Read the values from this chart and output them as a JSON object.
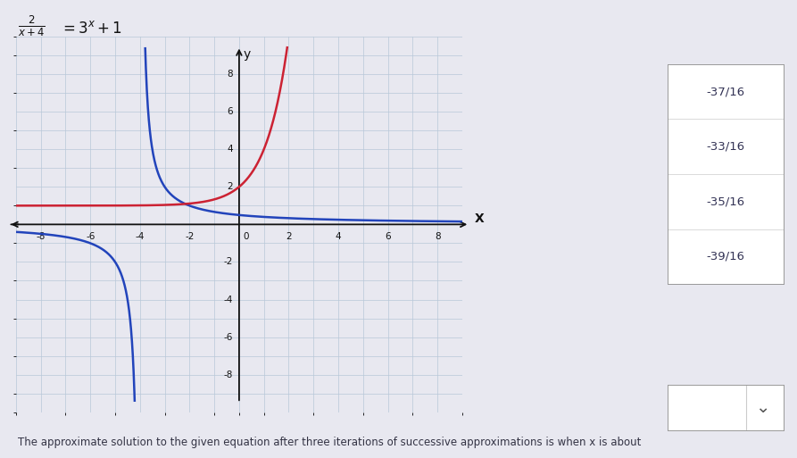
{
  "bg_color": "#e8e8f0",
  "grid_color": "#b8c8d8",
  "axis_color": "#111111",
  "blue_color": "#2244bb",
  "red_color": "#cc2233",
  "xlim": [
    -9,
    9
  ],
  "ylim": [
    -9.5,
    9.5
  ],
  "xticks": [
    -8,
    -6,
    -4,
    -2,
    2,
    4,
    6,
    8
  ],
  "yticks": [
    -8,
    -6,
    -4,
    -2,
    2,
    4,
    6,
    8
  ],
  "dropdown_options": [
    "-37/16",
    "-33/16",
    "-35/16",
    "-39/16"
  ],
  "bottom_text": "The approximate solution to the given equation after three iterations of successive approximations is when x is about"
}
